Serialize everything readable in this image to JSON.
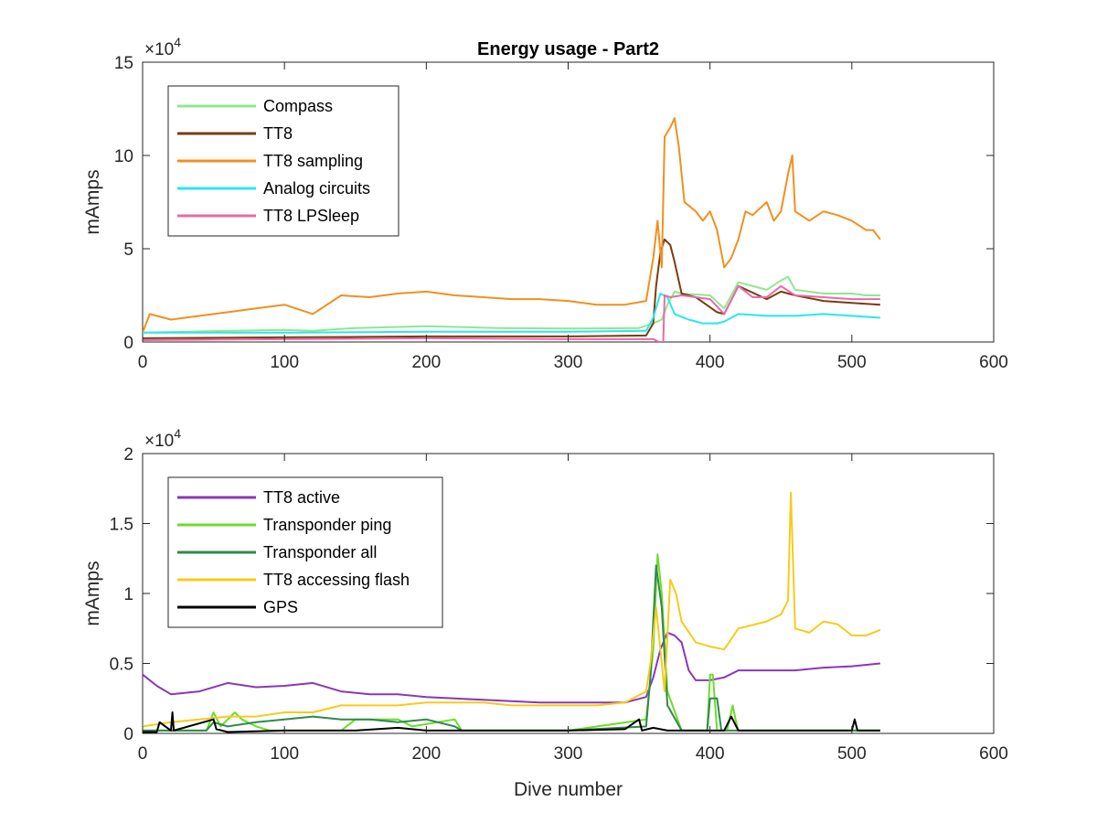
{
  "chart_data": [
    {
      "type": "line",
      "title": "Energy usage - Part2",
      "xlabel": "",
      "ylabel": "mAmps",
      "y_exponent_label": "×10",
      "y_exponent_power": "4",
      "xlim": [
        0,
        600
      ],
      "ylim": [
        0,
        15
      ],
      "xticks": [
        "0",
        "100",
        "200",
        "300",
        "400",
        "500",
        "600"
      ],
      "yticks": [
        "0",
        "5",
        "10",
        "15"
      ],
      "legend_position": "top-left",
      "series": [
        {
          "name": "Compass",
          "color": "#8ee88e",
          "x": [
            0,
            30,
            60,
            100,
            120,
            150,
            200,
            250,
            300,
            350,
            360,
            366,
            370,
            375,
            380,
            400,
            410,
            420,
            440,
            450,
            455,
            460,
            480,
            500,
            510,
            520
          ],
          "y": [
            0.5,
            0.55,
            0.6,
            0.65,
            0.6,
            0.75,
            0.85,
            0.75,
            0.72,
            0.75,
            1.0,
            1.2,
            2.0,
            2.7,
            2.6,
            2.5,
            1.8,
            3.2,
            2.8,
            3.3,
            3.5,
            2.8,
            2.6,
            2.6,
            2.5,
            2.5
          ]
        },
        {
          "name": "TT8",
          "color": "#7a3b10",
          "x": [
            0,
            100,
            200,
            300,
            355,
            360,
            362,
            365,
            368,
            372,
            375,
            380,
            390,
            405,
            410,
            420,
            440,
            450,
            460,
            480,
            500,
            520
          ],
          "y": [
            0.2,
            0.25,
            0.3,
            0.3,
            0.35,
            1.0,
            3.0,
            4.8,
            5.5,
            5.2,
            4.3,
            2.6,
            2.4,
            1.6,
            1.5,
            3.0,
            2.3,
            2.7,
            2.5,
            2.2,
            2.1,
            2.0
          ]
        },
        {
          "name": "TT8 sampling",
          "color": "#f0901e",
          "x": [
            0,
            5,
            20,
            40,
            60,
            80,
            100,
            120,
            140,
            160,
            180,
            200,
            220,
            240,
            260,
            280,
            300,
            320,
            340,
            355,
            360,
            363,
            366,
            368,
            372,
            375,
            378,
            382,
            390,
            395,
            400,
            405,
            410,
            415,
            420,
            425,
            430,
            440,
            445,
            450,
            455,
            458,
            460,
            470,
            480,
            490,
            500,
            510,
            515,
            520
          ],
          "y": [
            0.5,
            1.5,
            1.2,
            1.4,
            1.6,
            1.8,
            2.0,
            1.5,
            2.5,
            2.4,
            2.6,
            2.7,
            2.5,
            2.4,
            2.3,
            2.3,
            2.2,
            2.0,
            2.0,
            2.2,
            4.5,
            6.5,
            4.0,
            11.0,
            11.5,
            12.0,
            10.5,
            7.5,
            7.0,
            6.5,
            7.0,
            6.0,
            4.0,
            4.5,
            5.5,
            7.0,
            6.8,
            7.5,
            6.5,
            7.0,
            9.0,
            10.0,
            7.0,
            6.5,
            7.0,
            6.8,
            6.5,
            6.0,
            6.0,
            5.5
          ]
        },
        {
          "name": "Analog circuits",
          "color": "#28e8ea",
          "x": [
            0,
            100,
            200,
            300,
            355,
            360,
            365,
            370,
            375,
            385,
            395,
            405,
            410,
            420,
            440,
            460,
            480,
            500,
            520
          ],
          "y": [
            0.5,
            0.5,
            0.55,
            0.55,
            0.6,
            1.3,
            2.6,
            2.4,
            1.5,
            1.2,
            1.0,
            1.0,
            1.1,
            1.5,
            1.4,
            1.4,
            1.5,
            1.4,
            1.3
          ]
        },
        {
          "name": "TT8 LPSleep",
          "color": "#e86aa8",
          "x": [
            0,
            100,
            200,
            300,
            360,
            364,
            367,
            368,
            372,
            380,
            400,
            410,
            420,
            430,
            440,
            450,
            460,
            480,
            500,
            520
          ],
          "y": [
            0.1,
            0.15,
            0.2,
            0.15,
            0.15,
            0.0,
            0.0,
            2.5,
            2.4,
            2.5,
            2.3,
            1.5,
            3.0,
            2.4,
            2.4,
            3.0,
            2.5,
            2.4,
            2.3,
            2.3
          ]
        }
      ]
    },
    {
      "type": "line",
      "title": "",
      "xlabel": "Dive number",
      "ylabel": "mAmps",
      "y_exponent_label": "×10",
      "y_exponent_power": "4",
      "xlim": [
        0,
        600
      ],
      "ylim": [
        0,
        2
      ],
      "xticks": [
        "0",
        "100",
        "200",
        "300",
        "400",
        "500",
        "600"
      ],
      "yticks": [
        "0",
        "0.5",
        "1",
        "1.5",
        "2"
      ],
      "legend_position": "top-left",
      "series": [
        {
          "name": "TT8 active",
          "color": "#8a36b8",
          "x": [
            0,
            10,
            20,
            40,
            60,
            80,
            100,
            120,
            140,
            160,
            180,
            200,
            220,
            240,
            260,
            280,
            300,
            320,
            340,
            355,
            360,
            365,
            370,
            375,
            380,
            385,
            390,
            400,
            410,
            420,
            440,
            460,
            480,
            500,
            520
          ],
          "y": [
            0.42,
            0.34,
            0.28,
            0.3,
            0.36,
            0.33,
            0.34,
            0.36,
            0.3,
            0.28,
            0.28,
            0.26,
            0.25,
            0.24,
            0.23,
            0.22,
            0.22,
            0.22,
            0.22,
            0.26,
            0.4,
            0.6,
            0.72,
            0.7,
            0.65,
            0.45,
            0.38,
            0.38,
            0.4,
            0.45,
            0.45,
            0.45,
            0.47,
            0.48,
            0.5
          ]
        },
        {
          "name": "Transponder ping",
          "color": "#6ddc2a",
          "x": [
            0,
            45,
            50,
            55,
            65,
            70,
            80,
            90,
            140,
            150,
            180,
            190,
            220,
            225,
            240,
            300,
            355,
            360,
            363,
            366,
            370,
            380,
            398,
            400,
            402,
            405,
            408,
            412,
            416,
            418,
            420,
            430,
            520
          ],
          "y": [
            0.02,
            0.02,
            0.15,
            0.05,
            0.15,
            0.1,
            0.05,
            0.02,
            0.02,
            0.1,
            0.1,
            0.05,
            0.1,
            0.02,
            0.02,
            0.02,
            0.1,
            0.6,
            1.28,
            1.0,
            0.3,
            0.02,
            0.02,
            0.42,
            0.42,
            0.02,
            0.02,
            0.02,
            0.2,
            0.1,
            0.02,
            0.02,
            0.02
          ]
        },
        {
          "name": "Transponder all",
          "color": "#2e8a4a",
          "x": [
            0,
            45,
            50,
            60,
            80,
            100,
            120,
            140,
            160,
            180,
            200,
            220,
            225,
            300,
            355,
            358,
            362,
            366,
            370,
            380,
            398,
            400,
            405,
            408,
            520
          ],
          "y": [
            0.02,
            0.02,
            0.08,
            0.05,
            0.08,
            0.1,
            0.12,
            0.1,
            0.1,
            0.08,
            0.1,
            0.05,
            0.02,
            0.02,
            0.05,
            0.4,
            1.2,
            0.9,
            0.2,
            0.02,
            0.02,
            0.25,
            0.25,
            0.02,
            0.02
          ]
        },
        {
          "name": "TT8 accessing flash",
          "color": "#f6cb1a",
          "x": [
            0,
            20,
            40,
            60,
            80,
            100,
            120,
            140,
            160,
            180,
            200,
            220,
            240,
            260,
            280,
            300,
            320,
            340,
            355,
            358,
            362,
            365,
            368,
            372,
            376,
            380,
            390,
            400,
            410,
            420,
            440,
            450,
            455,
            457,
            460,
            470,
            480,
            490,
            500,
            510,
            520
          ],
          "y": [
            0.05,
            0.08,
            0.1,
            0.12,
            0.12,
            0.15,
            0.15,
            0.2,
            0.2,
            0.2,
            0.22,
            0.22,
            0.22,
            0.2,
            0.2,
            0.2,
            0.2,
            0.22,
            0.3,
            0.5,
            0.9,
            0.6,
            0.3,
            1.1,
            1.0,
            0.8,
            0.65,
            0.62,
            0.6,
            0.75,
            0.8,
            0.85,
            0.95,
            1.72,
            0.75,
            0.72,
            0.8,
            0.78,
            0.7,
            0.7,
            0.74
          ]
        },
        {
          "name": "GPS",
          "color": "#000000",
          "x": [
            0,
            10,
            12,
            20,
            21,
            22,
            50,
            52,
            60,
            100,
            150,
            180,
            200,
            250,
            300,
            340,
            350,
            352,
            360,
            370,
            380,
            400,
            410,
            415,
            420,
            450,
            500,
            502,
            504,
            520
          ],
          "y": [
            0.01,
            0.01,
            0.08,
            0.02,
            0.15,
            0.02,
            0.1,
            0.03,
            0.01,
            0.02,
            0.02,
            0.04,
            0.02,
            0.02,
            0.02,
            0.03,
            0.1,
            0.02,
            0.04,
            0.02,
            0.02,
            0.02,
            0.02,
            0.12,
            0.02,
            0.02,
            0.02,
            0.1,
            0.02,
            0.02
          ]
        }
      ]
    }
  ]
}
